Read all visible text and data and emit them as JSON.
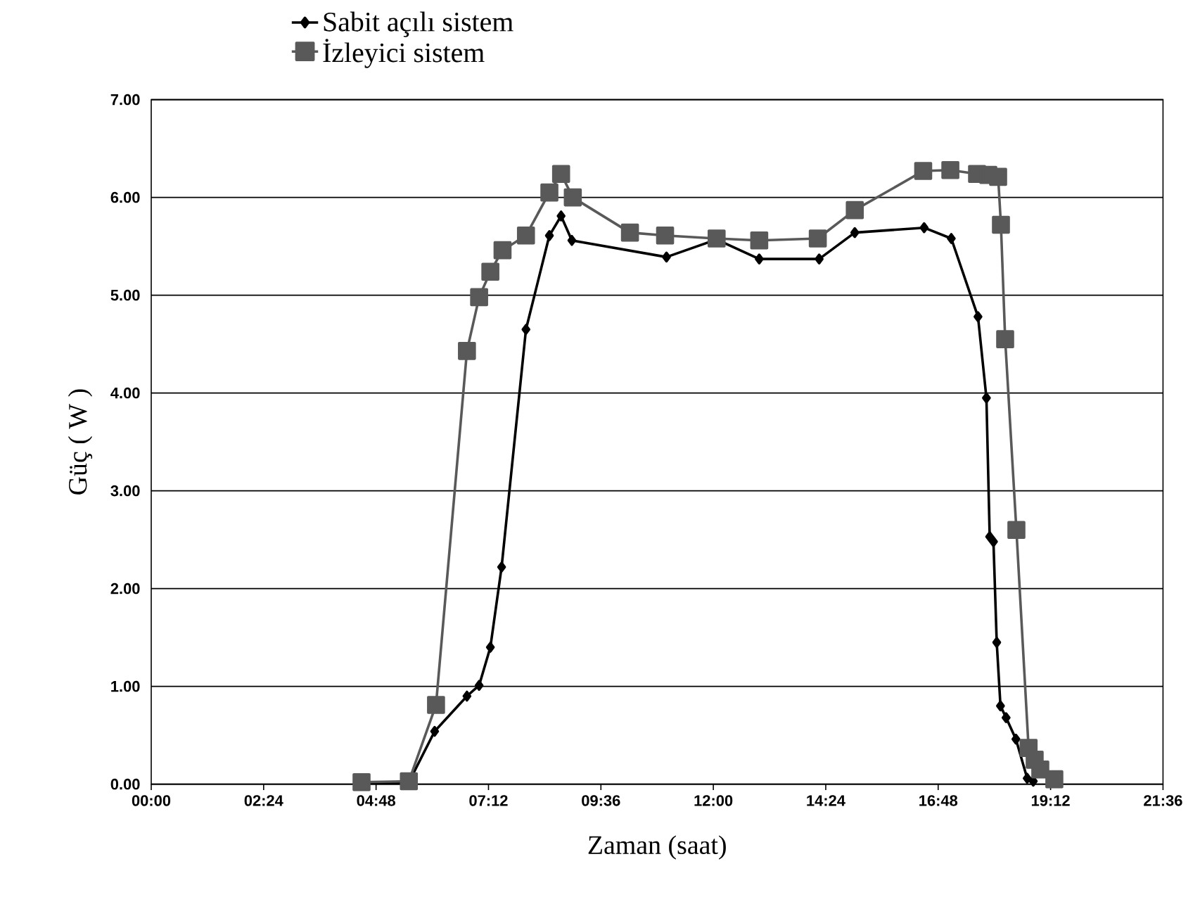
{
  "chart_data": {
    "type": "line",
    "xlabel": "Zaman (saat)",
    "ylabel": "Güç ( W )",
    "xlim": [
      0,
      21.6
    ],
    "ylim": [
      0,
      7
    ],
    "xticks": [
      {
        "value": 0,
        "label": "00:00"
      },
      {
        "value": 2.4,
        "label": "02:24"
      },
      {
        "value": 4.8,
        "label": "04:48"
      },
      {
        "value": 7.2,
        "label": "07:12"
      },
      {
        "value": 9.6,
        "label": "09:36"
      },
      {
        "value": 12,
        "label": "12:00"
      },
      {
        "value": 14.4,
        "label": "14:24"
      },
      {
        "value": 16.8,
        "label": "16:48"
      },
      {
        "value": 19.2,
        "label": "19:12"
      },
      {
        "value": 21.6,
        "label": "21:36"
      }
    ],
    "yticks": [
      {
        "value": 0,
        "label": "0.00"
      },
      {
        "value": 1,
        "label": "1.00"
      },
      {
        "value": 2,
        "label": "2.00"
      },
      {
        "value": 3,
        "label": "3.00"
      },
      {
        "value": 4,
        "label": "4.00"
      },
      {
        "value": 5,
        "label": "5.00"
      },
      {
        "value": 6,
        "label": "6.00"
      },
      {
        "value": 7,
        "label": "7.00"
      }
    ],
    "grid": "y",
    "legend": "top",
    "line_style": "solid",
    "series": [
      {
        "name": "Sabit açılı sistem",
        "color": "#000000",
        "marker": "diamond",
        "x": [
          4.49,
          5.5,
          6.05,
          6.74,
          7.0,
          7.24,
          7.48,
          8.0,
          8.5,
          8.75,
          8.98,
          10.22,
          11.0,
          12.07,
          12.98,
          14.26,
          15.02,
          16.5,
          17.08,
          17.65,
          17.83,
          17.9,
          17.98,
          18.05,
          18.13,
          18.25,
          18.46,
          18.7,
          18.83
        ],
        "values": [
          0,
          0.02,
          0.54,
          0.9,
          1.01,
          1.4,
          2.22,
          4.65,
          5.61,
          5.81,
          5.56,
          null,
          5.39,
          5.57,
          5.37,
          5.37,
          5.64,
          5.69,
          5.58,
          4.78,
          3.95,
          2.53,
          2.48,
          1.45,
          0.8,
          0.68,
          0.46,
          0.06,
          0.03
        ]
      },
      {
        "name": "İzleyici sistem",
        "color": "#595959",
        "marker": "square",
        "x": [
          4.49,
          5.5,
          6.08,
          6.74,
          7.0,
          7.24,
          7.5,
          8.0,
          8.5,
          8.75,
          9.0,
          10.22,
          10.97,
          12.07,
          12.98,
          14.23,
          15.02,
          16.48,
          17.06,
          17.63,
          17.87,
          18.08,
          18.14,
          18.23,
          18.47,
          18.73,
          18.86,
          18.98,
          19.28
        ],
        "values": [
          0.02,
          0.03,
          0.81,
          4.43,
          4.98,
          5.24,
          5.46,
          5.61,
          6.05,
          6.24,
          6.0,
          5.64,
          5.61,
          5.58,
          5.56,
          5.58,
          5.87,
          6.27,
          6.28,
          6.24,
          6.23,
          6.21,
          5.72,
          4.55,
          2.6,
          0.37,
          0.25,
          0.15,
          0.05
        ]
      }
    ]
  }
}
